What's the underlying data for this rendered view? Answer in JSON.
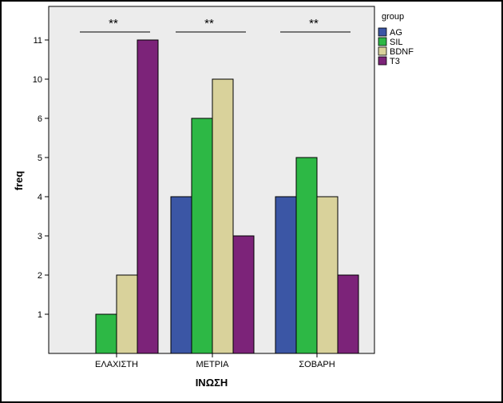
{
  "chart_data": {
    "type": "bar",
    "title": "",
    "xlabel": "ΙΝΩΣΗ",
    "ylabel": "freq",
    "categories": [
      "ΕΛΑΧΙΣΤΗ",
      "ΜΕΤΡΙΑ",
      "ΣΟΒΑΡΗ"
    ],
    "y_tick_labels": [
      "1",
      "2",
      "3",
      "4",
      "5",
      "6",
      "10",
      "11"
    ],
    "legend_title": "group",
    "legend_placement": "right",
    "grid": false,
    "background": "#ececec",
    "series": [
      {
        "name": "AG",
        "color": "#3b56a5",
        "values": [
          null,
          "4",
          "4"
        ],
        "rank": [
          null,
          4,
          4
        ]
      },
      {
        "name": "SIL",
        "color": "#2db845",
        "values": [
          "1",
          "6",
          "5"
        ],
        "rank": [
          1,
          6,
          5
        ]
      },
      {
        "name": "BDNF",
        "color": "#d9d29b",
        "values": [
          "2",
          "10",
          "4"
        ],
        "rank": [
          2,
          7,
          4
        ]
      },
      {
        "name": "T3",
        "color": "#7c2379",
        "values": [
          "11",
          "3",
          "2"
        ],
        "rank": [
          8,
          3,
          2
        ]
      }
    ],
    "significance": [
      {
        "category": "ΕΛΑΧΙΣΤΗ",
        "label": "**"
      },
      {
        "category": "ΜΕΤΡΙΑ",
        "label": "**"
      },
      {
        "category": "ΣΟΒΑΡΗ",
        "label": "**"
      }
    ]
  }
}
